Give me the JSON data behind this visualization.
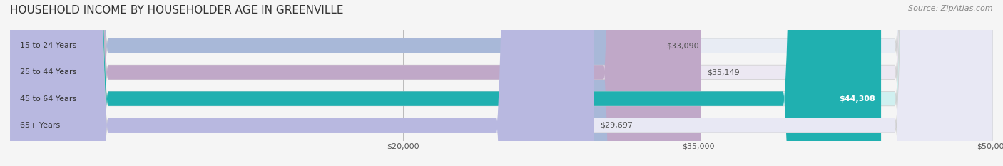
{
  "title": "HOUSEHOLD INCOME BY HOUSEHOLDER AGE IN GREENVILLE",
  "source": "Source: ZipAtlas.com",
  "categories": [
    "15 to 24 Years",
    "25 to 44 Years",
    "45 to 64 Years",
    "65+ Years"
  ],
  "values": [
    33090,
    35149,
    44308,
    29697
  ],
  "bar_colors": [
    "#a8b8d8",
    "#c0a8c8",
    "#20b0b0",
    "#b8b8e0"
  ],
  "bar_bg_colors": [
    "#e8ecf4",
    "#ece8f2",
    "#d0f0f0",
    "#e8e8f4"
  ],
  "value_labels": [
    "$33,090",
    "$35,149",
    "$44,308",
    "$29,697"
  ],
  "value_label_colors": [
    "#666666",
    "#666666",
    "#ffffff",
    "#666666"
  ],
  "xmin": 0,
  "xmax": 50000,
  "xticks": [
    20000,
    35000,
    50000
  ],
  "xtick_labels": [
    "$20,000",
    "$35,000",
    "$50,000"
  ],
  "title_fontsize": 11,
  "source_fontsize": 8,
  "tick_fontsize": 8,
  "bar_label_fontsize": 8,
  "category_fontsize": 8
}
